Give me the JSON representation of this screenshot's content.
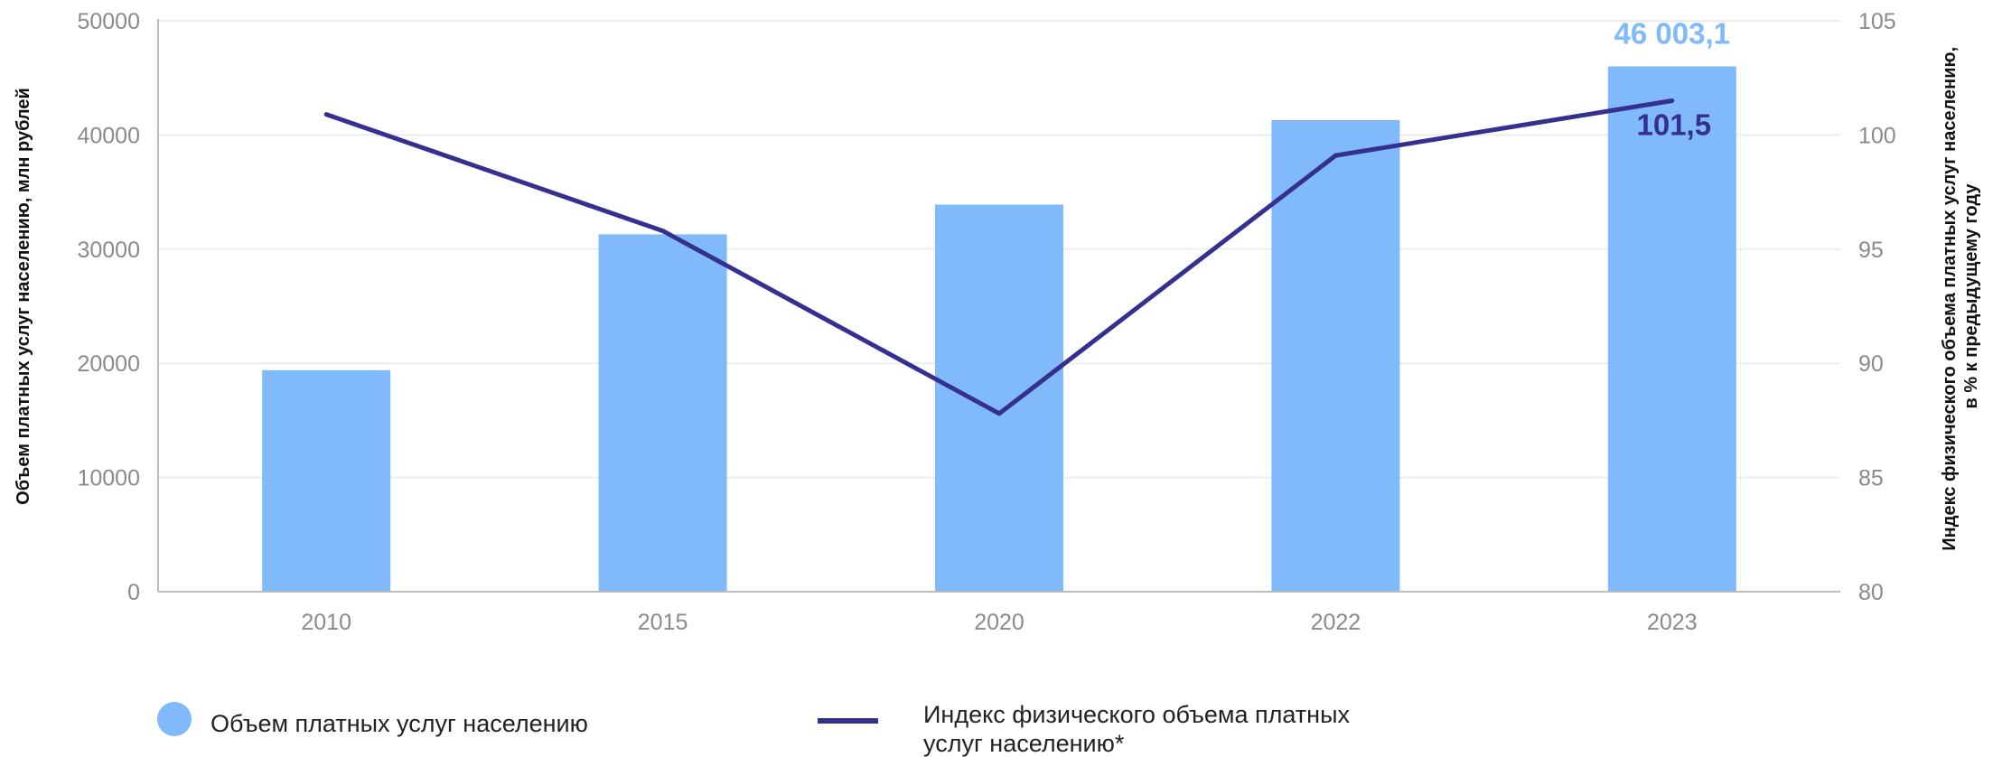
{
  "colors": {
    "bar": "#80BAFA",
    "line": "#35308F",
    "bar_label": "#80BAFA",
    "line_label": "#35308F",
    "grid": "#EDEDED",
    "axis": "#BBBBBB"
  },
  "chart_data": {
    "type": "bar",
    "categories": [
      "2010",
      "2015",
      "2020",
      "2022",
      "2023"
    ],
    "xlabel": "",
    "ylabel": "Объем платных услуг населению, млн рублей",
    "y2label_line1": "Индекс физического объема платных услуг населению,",
    "y2label_line2": "в % к предыдущему году",
    "ylim": [
      0,
      50000
    ],
    "y2lim": [
      80,
      105
    ],
    "yticks": [
      "0",
      "10000",
      "20000",
      "30000",
      "40000",
      "50000"
    ],
    "y2ticks": [
      "80",
      "85",
      "90",
      "95",
      "100",
      "105"
    ],
    "grid": true,
    "legend_position": "bottom",
    "series": [
      {
        "name": "Объем платных услуг населению",
        "type": "bar",
        "axis": "left",
        "values": [
          19400,
          31300,
          33900,
          41300,
          46003.1
        ]
      },
      {
        "name_line1": "Индекс физического объема платных",
        "name_line2": "услуг населению*",
        "type": "line",
        "axis": "right",
        "values": [
          100.9,
          95.8,
          87.8,
          99.1,
          101.5
        ]
      }
    ],
    "annotations": {
      "bar_last_label": "46 003,1",
      "line_last_label": "101,5"
    }
  }
}
